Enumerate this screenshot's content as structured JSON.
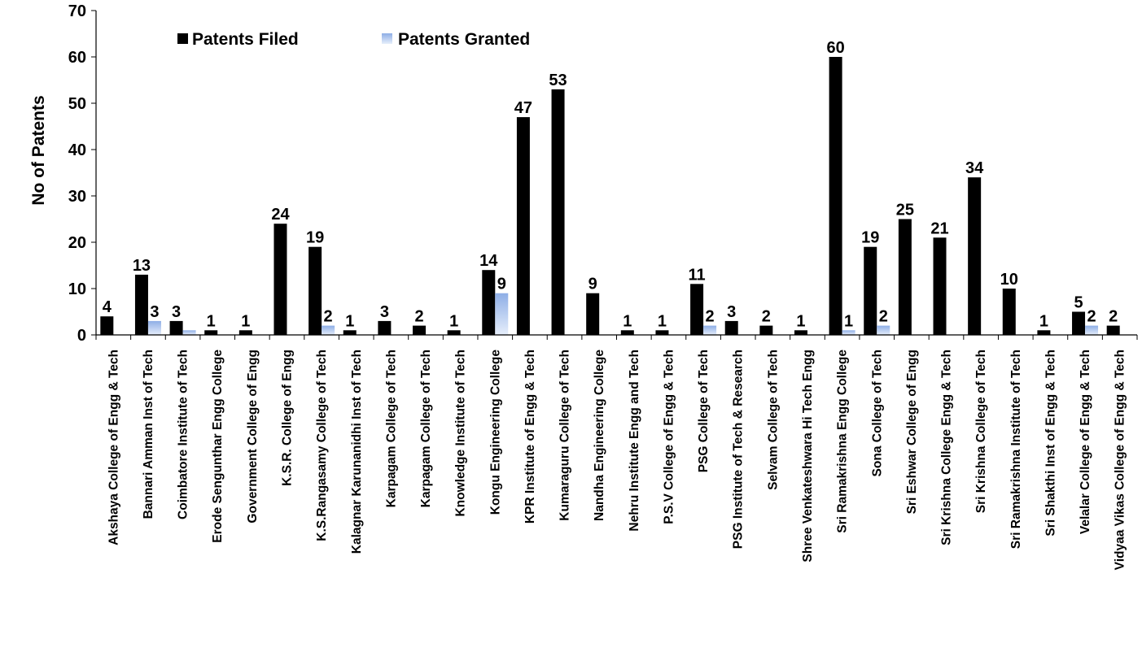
{
  "chart_data": {
    "type": "bar",
    "title": "",
    "xlabel": "",
    "ylabel": "No of Patents",
    "ylim": [
      0,
      70
    ],
    "yticks": [
      0,
      10,
      20,
      30,
      40,
      50,
      60,
      70
    ],
    "grid": false,
    "legend_position": "top-left",
    "categories": [
      "Akshaya College of Engg & Tech",
      "Bannari Amman Inst of Tech",
      "Coimbatore Institute of Tech",
      "Erode Sengunthar Engg College",
      "Government College of Engg",
      "K.S.R. College of Engg",
      "K.S.Rangasamy College of Tech",
      "Kalagnar Karunanidhi Inst of Tech",
      "Karpagam College of Tech",
      "Karpagam College of Tech",
      "Knowledge Institute of Tech",
      "Kongu Engineering College",
      "KPR Institute of Engg & Tech",
      "Kumaraguru College of Tech",
      "Nandha Engineering College",
      "Nehru Institute Engg and Tech",
      "P.S.V College of Engg & Tech",
      "PSG College of Tech",
      "PSG Institute of Tech & Research",
      "Selvam College of Tech",
      "Shree Venkateshwara Hi Tech Engg",
      "Sri Ramakrishna Engg College",
      "Sona College of Tech",
      "Sri Eshwar College of Engg",
      "Sri Krishna College Engg & Tech",
      "Sri Krishna College of Tech",
      "Sri Ramakrishna Institute of Tech",
      "Sri Shakthi Inst of Engg & Tech",
      "Velalar College of Engg & Tech",
      "Vidyaa Vikas College of Engg & Tech"
    ],
    "series": [
      {
        "name": "Patents Filed",
        "color": "#000000",
        "values": [
          4,
          13,
          3,
          1,
          1,
          24,
          19,
          1,
          3,
          2,
          1,
          14,
          47,
          53,
          9,
          1,
          1,
          11,
          3,
          2,
          1,
          60,
          19,
          25,
          21,
          34,
          10,
          1,
          5,
          2
        ],
        "labels": [
          "4",
          "13",
          "3",
          "1",
          "1",
          "24",
          "19",
          "1",
          "3",
          "2",
          "1",
          "14",
          "47",
          "53",
          "9",
          "1",
          "1",
          "11",
          "3",
          "2",
          "1",
          "60",
          "19",
          "25",
          "21",
          "34",
          "10",
          "1",
          "5",
          "2"
        ]
      },
      {
        "name": "Patents Granted",
        "color": "#b9cdf0",
        "values": [
          0,
          3,
          1,
          0,
          0,
          0,
          2,
          0,
          0,
          0,
          0,
          9,
          0,
          0,
          0,
          0,
          0,
          2,
          0,
          0,
          0,
          1,
          2,
          0,
          0,
          0,
          0,
          0,
          2,
          0
        ],
        "labels": [
          "",
          "3",
          "",
          "",
          "",
          "",
          "2",
          "",
          "",
          "",
          "",
          "9",
          "",
          "",
          "",
          "",
          "",
          "2",
          "",
          "",
          "",
          "1",
          "2",
          "",
          "",
          "",
          "",
          "",
          "2",
          ""
        ]
      }
    ]
  }
}
